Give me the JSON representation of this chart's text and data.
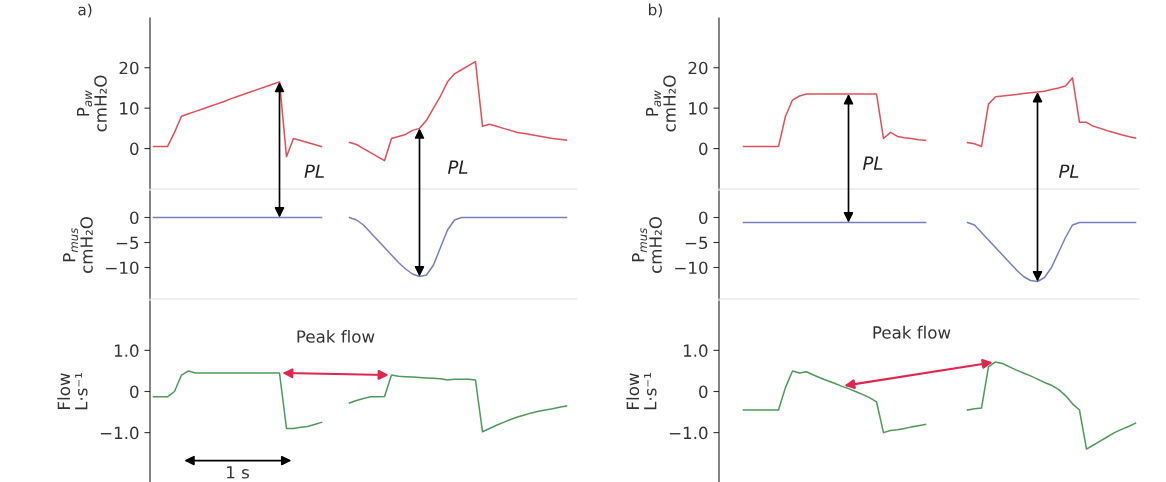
{
  "chart_data": [
    {
      "type": "line",
      "title": "a)",
      "ylabel": "P$_{aw}$\ncmH₂O",
      "tick_labels": "y",
      "categories": [
        null,
        null,
        null,
        null,
        null,
        null,
        null,
        null,
        null,
        null,
        null,
        null,
        null,
        null,
        null,
        null,
        null,
        null,
        null,
        null,
        null,
        null,
        null,
        null,
        null,
        null,
        null,
        null,
        null,
        null,
        null,
        null,
        null,
        null,
        null,
        null,
        null,
        null,
        null,
        null,
        null,
        null,
        null,
        null,
        null,
        null,
        null,
        null,
        null,
        null,
        null,
        null,
        null,
        null,
        null,
        null,
        null,
        null,
        null,
        null,
        null
      ],
      "ylim": [
        -10,
        32.3
      ],
      "yticks": [
        0,
        10,
        20
      ],
      "annotations": [
        "PL",
        "PL"
      ],
      "series": [
        {
          "color": "#e0505a",
          "values": [
            0.5,
            0.5,
            0.5,
            4,
            8,
            8.6,
            9.2,
            9.8,
            10.4,
            11,
            11.6,
            12.3,
            12.9,
            13.5,
            14.1,
            14.7,
            15.3,
            15.9,
            16.5,
            -2,
            2.5,
            2,
            1.5,
            1,
            0.5,
            null,
            null,
            null,
            null,
            null,
            null,
            null,
            null,
            null,
            null,
            null,
            null,
            null,
            null,
            null,
            null,
            null,
            null,
            null,
            null,
            null,
            null,
            null,
            null,
            null,
            null,
            null,
            null,
            null,
            null,
            null,
            null,
            null,
            null,
            null,
            null
          ]
        },
        {
          "color": "#e0505a",
          "values": [
            null,
            null,
            null,
            null,
            null,
            null,
            null,
            null,
            null,
            null,
            null,
            null,
            null,
            null,
            null,
            null,
            null,
            null,
            null,
            null,
            null,
            null,
            null,
            null,
            null,
            null,
            null,
            null,
            1.5,
            1,
            0,
            -1,
            -2,
            -3,
            2.5,
            3,
            3.5,
            4.5,
            5,
            7,
            10,
            13,
            16.5,
            18.5,
            19.5,
            20.5,
            21.5,
            5.5,
            6,
            5.5,
            5,
            4.5,
            4,
            3.7,
            3.4,
            3.1,
            2.8,
            2.5,
            2.3,
            2.1,
            null
          ]
        }
      ]
    },
    {
      "type": "line",
      "ylabel": "P$_{mus}$\ncmH₂O",
      "tick_labels": "y",
      "categories": [
        null,
        null,
        null,
        null,
        null,
        null,
        null,
        null,
        null,
        null,
        null,
        null,
        null,
        null,
        null,
        null,
        null,
        null,
        null,
        null,
        null,
        null,
        null,
        null,
        null,
        null,
        null,
        null,
        null,
        null,
        null,
        null,
        null,
        null,
        null,
        null,
        null,
        null,
        null,
        null,
        null,
        null,
        null,
        null,
        null,
        null,
        null,
        null,
        null,
        null,
        null,
        null,
        null,
        null,
        null,
        null,
        null,
        null,
        null,
        null,
        null
      ],
      "ylim": [
        -16.3,
        5.3
      ],
      "yticks": [
        0,
        {
          "value": -5,
          "label": "−5"
        },
        {
          "value": -10,
          "label": "−10"
        }
      ],
      "series": [
        {
          "color": "#7a7fc0",
          "values": [
            0,
            0,
            0,
            0,
            0,
            0,
            0,
            0,
            0,
            0,
            0,
            0,
            0,
            0,
            0,
            0,
            0,
            0,
            0,
            0,
            0,
            0,
            0,
            0,
            0,
            null,
            null,
            null,
            null,
            null,
            null,
            null,
            null,
            null,
            null,
            null,
            null,
            null,
            null,
            null,
            null,
            null,
            null,
            null,
            null,
            null,
            null,
            null,
            null,
            null,
            null,
            null,
            null,
            null,
            null,
            null,
            null,
            null,
            null,
            null,
            null
          ]
        },
        {
          "color": "#7a7fc0",
          "values": [
            null,
            null,
            null,
            null,
            null,
            null,
            null,
            null,
            null,
            null,
            null,
            null,
            null,
            null,
            null,
            null,
            null,
            null,
            null,
            null,
            null,
            null,
            null,
            null,
            null,
            null,
            null,
            null,
            0,
            -0.5,
            -1.5,
            -3,
            -4.5,
            -6,
            -7.5,
            -9,
            -10.3,
            -11.3,
            -11.8,
            -11.5,
            -9.5,
            -6,
            -2.5,
            -0.5,
            0,
            0,
            0,
            0,
            0,
            0,
            0,
            0,
            0,
            0,
            0,
            0,
            0,
            0,
            0,
            0,
            null
          ]
        }
      ]
    },
    {
      "type": "line",
      "ylabel": "Flow\nL·s⁻¹",
      "tick_labels": "y",
      "categories": [
        null,
        null,
        null,
        null,
        null,
        null,
        null,
        null,
        null,
        null,
        null,
        null,
        null,
        null,
        null,
        null,
        null,
        null,
        null,
        null,
        null,
        null,
        null,
        null,
        null,
        null,
        null,
        null,
        null,
        null,
        null,
        null,
        null,
        null,
        null,
        null,
        null,
        null,
        null,
        null,
        null,
        null,
        null,
        null,
        null,
        null,
        null,
        null,
        null,
        null,
        null,
        null,
        null,
        null,
        null,
        null,
        null,
        null,
        null,
        null,
        null
      ],
      "ylim": [
        -2.2,
        2.2
      ],
      "yticks": [
        {
          "value": 1,
          "label": "1.0"
        },
        0,
        {
          "value": -1,
          "label": "−1.0"
        }
      ],
      "annotations": [
        "Peak flow",
        "1 s"
      ],
      "series": [
        {
          "color": "#4e9a5a",
          "values": [
            -0.13,
            -0.13,
            -0.13,
            0,
            0.4,
            0.5,
            0.45,
            0.45,
            0.45,
            0.45,
            0.45,
            0.45,
            0.45,
            0.45,
            0.45,
            0.45,
            0.45,
            0.45,
            0.45,
            -0.9,
            -0.9,
            -0.87,
            -0.85,
            -0.8,
            -0.75,
            null,
            null,
            null,
            null,
            null,
            null,
            null,
            null,
            null,
            null,
            null,
            null,
            null,
            null,
            null,
            null,
            null,
            null,
            null,
            null,
            null,
            null,
            null,
            null,
            null,
            null,
            null,
            null,
            null,
            null,
            null,
            null,
            null,
            null,
            null,
            null
          ]
        },
        {
          "color": "#4e9a5a",
          "values": [
            null,
            null,
            null,
            null,
            null,
            null,
            null,
            null,
            null,
            null,
            null,
            null,
            null,
            null,
            null,
            null,
            null,
            null,
            null,
            null,
            null,
            null,
            null,
            null,
            null,
            null,
            null,
            null,
            -0.28,
            -0.22,
            -0.17,
            -0.13,
            -0.13,
            -0.12,
            0.4,
            0.37,
            0.36,
            0.35,
            0.34,
            0.33,
            0.32,
            0.31,
            0.28,
            0.3,
            0.3,
            0.3,
            0.28,
            -0.98,
            -0.9,
            -0.82,
            -0.75,
            -0.68,
            -0.62,
            -0.57,
            -0.52,
            -0.48,
            -0.45,
            -0.42,
            -0.38,
            -0.35,
            null
          ]
        }
      ]
    },
    {
      "type": "line",
      "title": "b)",
      "ylabel": "P$_{aw}$\ncmH₂O",
      "tick_labels": "y",
      "categories": [
        null,
        null,
        null,
        null,
        null,
        null,
        null,
        null,
        null,
        null,
        null,
        null,
        null,
        null,
        null,
        null,
        null,
        null,
        null,
        null,
        null,
        null,
        null,
        null,
        null,
        null,
        null,
        null,
        null,
        null,
        null,
        null,
        null,
        null,
        null,
        null,
        null,
        null,
        null,
        null,
        null,
        null,
        null,
        null,
        null,
        null,
        null,
        null,
        null,
        null,
        null,
        null,
        null,
        null,
        null,
        null,
        null,
        null,
        null,
        null
      ],
      "ylim": [
        -10,
        32.3
      ],
      "yticks": [
        0,
        10,
        20
      ],
      "annotations": [
        "PL",
        "PL"
      ],
      "series": [
        {
          "color": "#e0505a",
          "values": [
            null,
            null,
            null,
            0.5,
            0.5,
            0.5,
            0.5,
            0.5,
            0.5,
            8,
            12,
            13,
            13.5,
            13.5,
            13.5,
            13.5,
            13.5,
            13.5,
            13.5,
            13.5,
            13.5,
            13.5,
            13.5,
            2.5,
            4,
            3,
            2.7,
            2.5,
            2.2,
            2,
            null,
            null,
            null,
            null,
            null,
            null,
            null,
            null,
            null,
            null,
            null,
            null,
            null,
            null,
            null,
            null,
            null,
            null,
            null,
            null,
            null,
            null,
            null,
            null,
            null,
            null,
            null,
            null,
            null,
            null
          ]
        },
        {
          "color": "#e0505a",
          "values": [
            null,
            null,
            null,
            null,
            null,
            null,
            null,
            null,
            null,
            null,
            null,
            null,
            null,
            null,
            null,
            null,
            null,
            null,
            null,
            null,
            null,
            null,
            null,
            null,
            null,
            null,
            null,
            null,
            null,
            null,
            null,
            null,
            null,
            null,
            null,
            1.5,
            1.2,
            0.5,
            11,
            12.8,
            13,
            13.2,
            13.4,
            13.6,
            13.8,
            14,
            14.2,
            14.6,
            15,
            15.5,
            17.5,
            6.5,
            6.5,
            5.5,
            5,
            4.4,
            3.9,
            3.4,
            3,
            2.6
          ]
        }
      ]
    },
    {
      "type": "line",
      "ylabel": "P$_{mus}$\ncmH₂O",
      "tick_labels": "y",
      "categories": [
        null,
        null,
        null,
        null,
        null,
        null,
        null,
        null,
        null,
        null,
        null,
        null,
        null,
        null,
        null,
        null,
        null,
        null,
        null,
        null,
        null,
        null,
        null,
        null,
        null,
        null,
        null,
        null,
        null,
        null,
        null,
        null,
        null,
        null,
        null,
        null,
        null,
        null,
        null,
        null,
        null,
        null,
        null,
        null,
        null,
        null,
        null,
        null,
        null,
        null,
        null,
        null,
        null,
        null,
        null,
        null,
        null,
        null,
        null,
        null
      ],
      "ylim": [
        -16.3,
        5.3
      ],
      "yticks": [
        0,
        {
          "value": -5,
          "label": "−5"
        },
        {
          "value": -10,
          "label": "−10"
        }
      ],
      "series": [
        {
          "color": "#7a7fc0",
          "values": [
            null,
            null,
            null,
            -1,
            -1,
            -1,
            -1,
            -1,
            -1,
            -1,
            -1,
            -1,
            -1,
            -1,
            -1,
            -1,
            -1,
            -1,
            -1,
            -1,
            -1,
            -1,
            -1,
            -1,
            -1,
            -1,
            -1,
            -1,
            -1,
            -1,
            null,
            null,
            null,
            null,
            null,
            null,
            null,
            null,
            null,
            null,
            null,
            null,
            null,
            null,
            null,
            null,
            null,
            null,
            null,
            null,
            null,
            null,
            null,
            null,
            null,
            null,
            null,
            null,
            null,
            null
          ]
        },
        {
          "color": "#7a7fc0",
          "values": [
            null,
            null,
            null,
            null,
            null,
            null,
            null,
            null,
            null,
            null,
            null,
            null,
            null,
            null,
            null,
            null,
            null,
            null,
            null,
            null,
            null,
            null,
            null,
            null,
            null,
            null,
            null,
            null,
            null,
            null,
            null,
            null,
            null,
            null,
            null,
            -1,
            -1.5,
            -3,
            -4.5,
            -6,
            -7.5,
            -9,
            -10.5,
            -11.8,
            -12.6,
            -12.8,
            -12,
            -10,
            -7,
            -4,
            -1.5,
            -1,
            -1,
            -1,
            -1,
            -1,
            -1,
            -1,
            -1,
            -1
          ]
        }
      ]
    },
    {
      "type": "line",
      "ylabel": "Flow\nL·s⁻¹",
      "tick_labels": "y",
      "categories": [
        null,
        null,
        null,
        null,
        null,
        null,
        null,
        null,
        null,
        null,
        null,
        null,
        null,
        null,
        null,
        null,
        null,
        null,
        null,
        null,
        null,
        null,
        null,
        null,
        null,
        null,
        null,
        null,
        null,
        null,
        null,
        null,
        null,
        null,
        null,
        null,
        null,
        null,
        null,
        null,
        null,
        null,
        null,
        null,
        null,
        null,
        null,
        null,
        null,
        null,
        null,
        null,
        null,
        null,
        null,
        null,
        null,
        null,
        null,
        null
      ],
      "ylim": [
        -2.2,
        2.2
      ],
      "yticks": [
        {
          "value": 1,
          "label": "1.0"
        },
        0,
        {
          "value": -1,
          "label": "−1.0"
        }
      ],
      "annotations": [
        "Peak flow"
      ],
      "series": [
        {
          "color": "#4e9a5a",
          "values": [
            null,
            null,
            null,
            -0.45,
            -0.45,
            -0.45,
            -0.45,
            -0.45,
            -0.45,
            0.1,
            0.5,
            0.45,
            0.48,
            0.4,
            0.33,
            0.26,
            0.2,
            0.13,
            0.07,
            0,
            -0.07,
            -0.15,
            -0.25,
            -1,
            -0.95,
            -0.93,
            -0.9,
            -0.86,
            -0.83,
            -0.8,
            null,
            null,
            null,
            null,
            null,
            null,
            null,
            null,
            null,
            null,
            null,
            null,
            null,
            null,
            null,
            null,
            null,
            null,
            null,
            null,
            null,
            null,
            null,
            null,
            null,
            null,
            null,
            null,
            null,
            null
          ]
        },
        {
          "color": "#4e9a5a",
          "values": [
            null,
            null,
            null,
            null,
            null,
            null,
            null,
            null,
            null,
            null,
            null,
            null,
            null,
            null,
            null,
            null,
            null,
            null,
            null,
            null,
            null,
            null,
            null,
            null,
            null,
            null,
            null,
            null,
            null,
            null,
            null,
            null,
            null,
            null,
            null,
            -0.45,
            -0.42,
            -0.4,
            0.6,
            0.72,
            0.68,
            0.6,
            0.52,
            0.45,
            0.38,
            0.3,
            0.22,
            0.15,
            0.05,
            -0.1,
            -0.3,
            -0.45,
            -1.4,
            -1.3,
            -1.2,
            -1.1,
            -1,
            -0.92,
            -0.85,
            -0.77
          ]
        }
      ]
    }
  ]
}
